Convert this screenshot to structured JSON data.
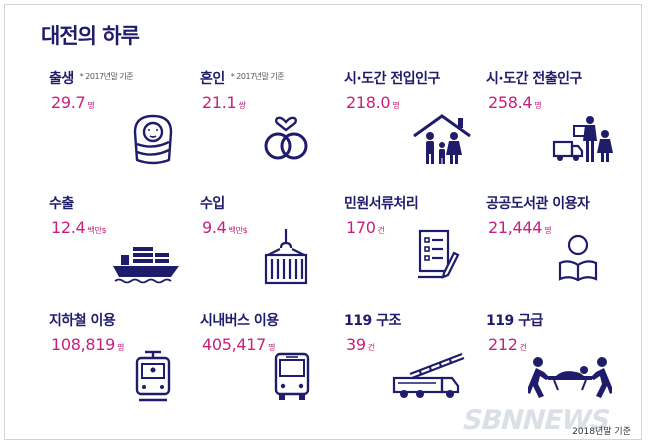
{
  "title": "대전의 하루",
  "footer_note": "2018년말 기준",
  "watermark": "SBNNEWS",
  "colors": {
    "label": "#1f1c6b",
    "value": "#c8207b",
    "icon": "#1f1c6b"
  },
  "stats": [
    {
      "label": "출생",
      "note": "* 2017년말 기준",
      "value": "29.7",
      "unit": "명",
      "icon": "swaddled-baby-icon"
    },
    {
      "label": "혼인",
      "note": "* 2017년말 기준",
      "value": "21.1",
      "unit": "쌍",
      "icon": "wedding-rings-icon"
    },
    {
      "label": "시·도간 전입인구",
      "note": "",
      "value": "218.0",
      "unit": "명",
      "icon": "family-house-icon"
    },
    {
      "label": "시·도간 전출인구",
      "note": "",
      "value": "258.4",
      "unit": "명",
      "icon": "moving-family-truck-icon"
    },
    {
      "label": "수출",
      "note": "",
      "value": "12.4",
      "unit": "백만$",
      "icon": "cargo-ship-icon"
    },
    {
      "label": "수입",
      "note": "",
      "value": "9.4",
      "unit": "백만$",
      "icon": "crane-container-icon"
    },
    {
      "label": "민원서류처리",
      "note": "",
      "value": "170",
      "unit": "건",
      "icon": "document-pen-icon"
    },
    {
      "label": "공공도서관 이용자",
      "note": "",
      "value": "21,444",
      "unit": "명",
      "icon": "person-reading-icon"
    },
    {
      "label": "지하철 이용",
      "note": "",
      "value": "108,819",
      "unit": "명",
      "icon": "subway-train-icon"
    },
    {
      "label": "시내버스 이용",
      "note": "",
      "value": "405,417",
      "unit": "명",
      "icon": "city-bus-icon"
    },
    {
      "label": "119 구조",
      "note": "",
      "value": "39",
      "unit": "건",
      "icon": "fire-truck-icon"
    },
    {
      "label": "119 구급",
      "note": "",
      "value": "212",
      "unit": "건",
      "icon": "stretcher-rescue-icon"
    }
  ]
}
